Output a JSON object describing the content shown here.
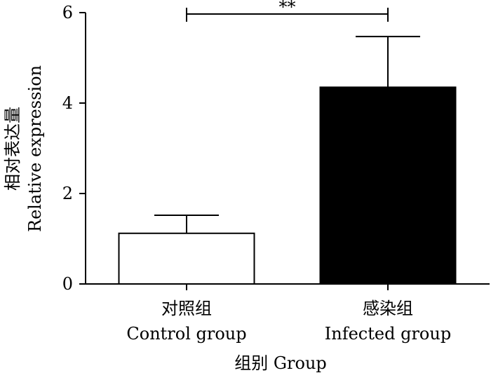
{
  "chart_data": {
    "type": "bar",
    "categories": [
      {
        "cn": "对照组",
        "en": "Control group"
      },
      {
        "cn": "感染组",
        "en": "Infected group"
      }
    ],
    "values": [
      1.12,
      4.35
    ],
    "errors": [
      0.4,
      1.12
    ],
    "bar_colors": [
      "#ffffff",
      "#000000"
    ],
    "ylim": [
      0,
      6
    ],
    "yticks": [
      0,
      2,
      4,
      6
    ],
    "ylabel_cn": "相对表达量",
    "ylabel_en": "Relative expression",
    "xlabel": "组别 Group",
    "significance": {
      "label": "**",
      "between": [
        0,
        1
      ]
    },
    "grid": false
  }
}
